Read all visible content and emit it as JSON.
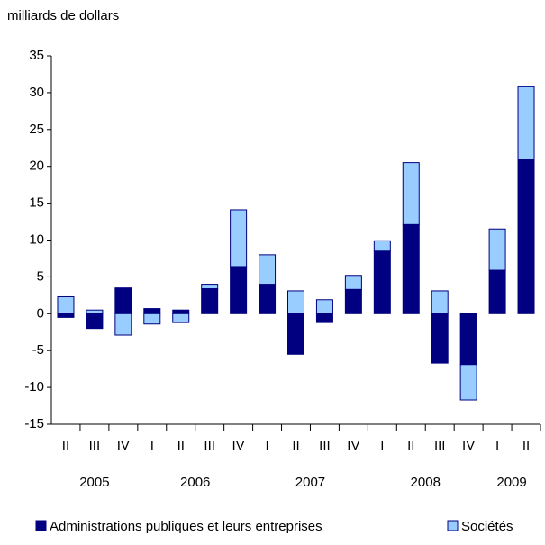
{
  "chart_data": {
    "type": "stacked_bar",
    "y_axis_label": "milliards de dollars",
    "groups": [
      {
        "label": "2005",
        "categories": [
          "II",
          "III",
          "IV"
        ]
      },
      {
        "label": "2006",
        "categories": [
          "I",
          "II",
          "III",
          "IV"
        ]
      },
      {
        "label": "2007",
        "categories": [
          "I",
          "II",
          "III",
          "IV"
        ]
      },
      {
        "label": "2008",
        "categories": [
          "I",
          "II",
          "III",
          "IV"
        ]
      },
      {
        "label": "2009",
        "categories": [
          "I",
          "II"
        ]
      }
    ],
    "series": [
      {
        "name": "Administrations publiques et leurs entreprises",
        "color": "#000080",
        "values": [
          -0.5,
          -2,
          3.5,
          0.7,
          0.5,
          3.4,
          6.4,
          4.0,
          -5.5,
          -1.2,
          3.3,
          8.5,
          12.1,
          -6.7,
          -6.9,
          5.9,
          21.0
        ]
      },
      {
        "name": "Sociétés",
        "color": "#99ccff",
        "values": [
          2.3,
          0.5,
          -2.9,
          -1.4,
          -1.2,
          0.6,
          7.7,
          4.0,
          3.1,
          1.9,
          1.9,
          1.4,
          8.4,
          3.1,
          -4.8,
          5.6,
          9.8
        ]
      }
    ],
    "ylim": [
      -15,
      35
    ],
    "yticks": [
      -15,
      -10,
      -5,
      0,
      5,
      10,
      15,
      20,
      25,
      30,
      35
    ]
  }
}
